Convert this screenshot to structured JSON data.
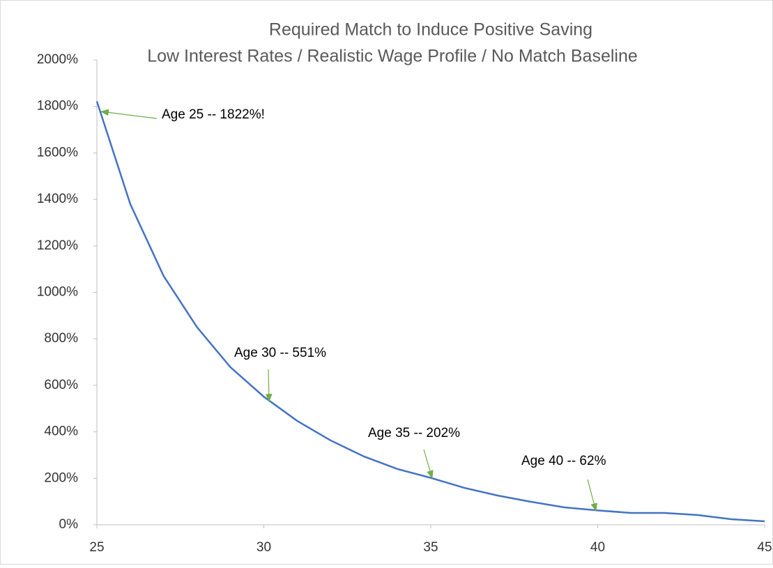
{
  "chart_data": {
    "type": "line",
    "title": "Required Match to Induce Positive Saving",
    "subtitle": "Low Interest Rates / Realistic Wage Profile / No Match Baseline",
    "x": [
      25,
      26,
      27,
      28,
      29,
      30,
      31,
      32,
      33,
      34,
      35,
      36,
      37,
      38,
      39,
      40,
      41,
      42,
      43,
      44,
      45
    ],
    "series": [
      {
        "name": "Required Match",
        "color": "#4472c4",
        "values": [
          1822,
          1380,
          1070,
          850,
          678,
          551,
          447,
          363,
          294,
          240,
          202,
          159,
          126,
          99,
          75,
          62,
          51,
          51,
          42,
          24,
          15
        ]
      }
    ],
    "xlim": [
      25,
      45
    ],
    "xticks": [
      25,
      30,
      35,
      40,
      45
    ],
    "ylim": [
      0,
      2000
    ],
    "yticks": [
      {
        "value": 0,
        "label": "0%"
      },
      {
        "value": 200,
        "label": "200%"
      },
      {
        "value": 400,
        "label": "400%"
      },
      {
        "value": 600,
        "label": "600%"
      },
      {
        "value": 800,
        "label": "800%"
      },
      {
        "value": 1000,
        "label": "1000%"
      },
      {
        "value": 1200,
        "label": "1200%"
      },
      {
        "value": 1400,
        "label": "1400%"
      },
      {
        "value": 1600,
        "label": "1600%"
      },
      {
        "value": 1800,
        "label": "1800%"
      },
      {
        "value": 2000,
        "label": "2000%"
      }
    ],
    "grid": false,
    "annotations": [
      {
        "text": "Age 25 -- 1822%!"
      },
      {
        "text": "Age 30 -- 551%"
      },
      {
        "text": "Age 35 -- 202%"
      },
      {
        "text": "Age 40 -- 62%"
      }
    ],
    "annotation_color": "#70ad47"
  }
}
